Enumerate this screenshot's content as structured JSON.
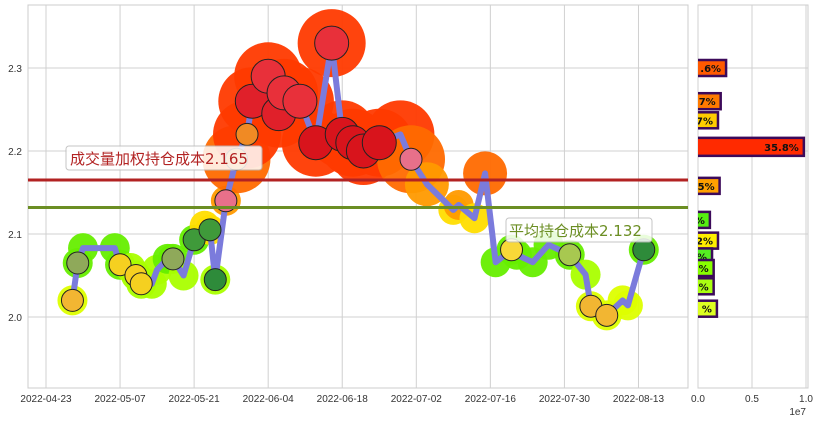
{
  "chart_data": [
    {
      "type": "line",
      "x_tick_labels": [
        "2022-04-23",
        "2022-05-07",
        "2022-05-21",
        "2022-06-04",
        "2022-06-18",
        "2022-07-02",
        "2022-07-16",
        "2022-07-30",
        "2022-08-13"
      ],
      "y_tick_labels": [
        "2.0",
        "2.1",
        "2.2",
        "2.3"
      ],
      "ylim": [
        1.915,
        2.376
      ],
      "xlim": [
        "2022-04-20",
        "2022-08-22"
      ],
      "grid": true,
      "line_color": "#7b7bdc",
      "points": [
        {
          "date": "2022-04-28",
          "price": 2.02,
          "icon": "pineapple"
        },
        {
          "date": "2022-04-29",
          "price": 2.065,
          "icon": "pear"
        },
        {
          "date": "2022-04-30",
          "price": 2.083
        },
        {
          "date": "2022-05-06",
          "price": 2.083
        },
        {
          "date": "2022-05-07",
          "price": 2.063,
          "icon": "corn"
        },
        {
          "date": "2022-05-09",
          "price": 2.059
        },
        {
          "date": "2022-05-10",
          "price": 2.05,
          "icon": "corn"
        },
        {
          "date": "2022-05-11",
          "price": 2.04,
          "icon": "corn"
        },
        {
          "date": "2022-05-13",
          "price": 2.04
        },
        {
          "date": "2022-05-14",
          "price": 2.057
        },
        {
          "date": "2022-05-16",
          "price": 2.07
        },
        {
          "date": "2022-05-17",
          "price": 2.07,
          "icon": "pear"
        },
        {
          "date": "2022-05-19",
          "price": 2.05
        },
        {
          "date": "2022-05-21",
          "price": 2.093,
          "icon": "peas"
        },
        {
          "date": "2022-05-23",
          "price": 2.11
        },
        {
          "date": "2022-05-24",
          "price": 2.105,
          "icon": "peas"
        },
        {
          "date": "2022-05-25",
          "price": 2.045,
          "icon": "watermelon"
        },
        {
          "date": "2022-05-27",
          "price": 2.14,
          "icon": "radish"
        },
        {
          "date": "2022-05-29",
          "price": 2.19,
          "icon": "carrot"
        },
        {
          "date": "2022-05-31",
          "price": 2.22,
          "icon": "carrot"
        },
        {
          "date": "2022-06-01",
          "price": 2.26,
          "icon": "strawberry"
        },
        {
          "date": "2022-06-04",
          "price": 2.29,
          "icon": "watermelon-slice"
        },
        {
          "date": "2022-06-06",
          "price": 2.245,
          "icon": "strawberry"
        },
        {
          "date": "2022-06-07",
          "price": 2.27,
          "icon": "watermelon-slice"
        },
        {
          "date": "2022-06-10",
          "price": 2.26,
          "icon": "watermelon-slice"
        },
        {
          "date": "2022-06-13",
          "price": 2.21,
          "icon": "apple"
        },
        {
          "date": "2022-06-16",
          "price": 2.33,
          "icon": "watermelon-slice"
        },
        {
          "date": "2022-06-18",
          "price": 2.22,
          "icon": "apple"
        },
        {
          "date": "2022-06-20",
          "price": 2.21,
          "icon": "apple"
        },
        {
          "date": "2022-06-22",
          "price": 2.2,
          "icon": "apple"
        },
        {
          "date": "2022-06-25",
          "price": 2.21,
          "icon": "apple"
        },
        {
          "date": "2022-06-29",
          "price": 2.22
        },
        {
          "date": "2022-07-01",
          "price": 2.19,
          "icon": "radish"
        },
        {
          "date": "2022-07-04",
          "price": 2.16
        },
        {
          "date": "2022-07-09",
          "price": 2.129
        },
        {
          "date": "2022-07-10",
          "price": 2.135
        },
        {
          "date": "2022-07-13",
          "price": 2.119
        },
        {
          "date": "2022-07-15",
          "price": 2.173
        },
        {
          "date": "2022-07-17",
          "price": 2.066
        },
        {
          "date": "2022-07-20",
          "price": 2.081,
          "icon": "banana"
        },
        {
          "date": "2022-07-21",
          "price": 2.075
        },
        {
          "date": "2022-07-24",
          "price": 2.066
        },
        {
          "date": "2022-07-27",
          "price": 2.087
        },
        {
          "date": "2022-07-31",
          "price": 2.075,
          "icon": "kiwi"
        },
        {
          "date": "2022-08-03",
          "price": 2.051
        },
        {
          "date": "2022-08-04",
          "price": 2.013,
          "icon": "pineapple"
        },
        {
          "date": "2022-08-07",
          "price": 2.002,
          "icon": "pineapple"
        },
        {
          "date": "2022-08-10",
          "price": 2.02
        },
        {
          "date": "2022-08-11",
          "price": 2.014
        },
        {
          "date": "2022-08-14",
          "price": 2.081,
          "icon": "watermelon"
        }
      ],
      "hlines": [
        {
          "label": "成交量加权持仓成本2.165",
          "value": 2.165,
          "color": "#b22222"
        },
        {
          "label": "平均持仓成本2.132",
          "value": 2.132,
          "color": "#6b8e23"
        }
      ]
    },
    {
      "type": "bar",
      "orientation": "horizontal",
      "x_tick_labels": [
        "0.0",
        "0.5",
        "1.0"
      ],
      "x_offset_label": "1e7",
      "xlim": [
        0,
        10200000
      ],
      "border_color": "#3c0a5a",
      "bars": [
        {
          "price": 2.3,
          "value": 2600000,
          "label": ".6%",
          "color": "#ff5a00"
        },
        {
          "price": 2.26,
          "value": 2100000,
          "label": "7%",
          "color": "#ff7a00"
        },
        {
          "price": 2.237,
          "value": 1850000,
          "label": "7%",
          "color": "#ffcc00"
        },
        {
          "price": 2.205,
          "value": 9800000,
          "label": "35.8%",
          "color": "#ff2a00"
        },
        {
          "price": 2.158,
          "value": 2000000,
          "label": "5%",
          "color": "#ffa000"
        },
        {
          "price": 2.117,
          "value": 1100000,
          "label": "%",
          "color": "#55ee11"
        },
        {
          "price": 2.092,
          "value": 1850000,
          "label": "2%",
          "color": "#ffee00"
        },
        {
          "price": 2.073,
          "value": 1300000,
          "label": "%",
          "color": "#55ee22"
        },
        {
          "price": 2.059,
          "value": 1450000,
          "label": "%",
          "color": "#88ff00"
        },
        {
          "price": 2.037,
          "value": 1450000,
          "label": "%",
          "color": "#aaff11"
        },
        {
          "price": 2.01,
          "value": 1750000,
          "label": "%",
          "color": "#ddff22"
        }
      ]
    }
  ]
}
